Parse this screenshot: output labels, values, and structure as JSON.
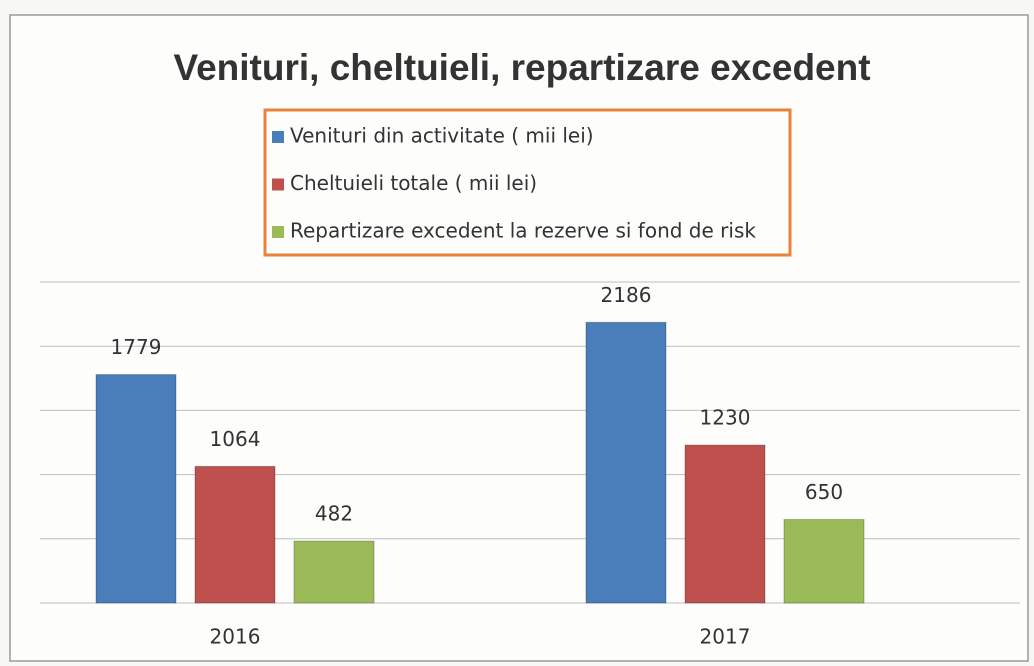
{
  "chart_data": {
    "type": "bar",
    "title": "Venituri, cheltuieli, repartizare excedent",
    "categories": [
      "2016",
      "2017"
    ],
    "series": [
      {
        "name": "Venituri din activitate ( mii lei)",
        "color": "#4a7ebb",
        "values": [
          1779,
          2186
        ]
      },
      {
        "name": "Cheltuieli  totale ( mii lei)",
        "color": "#c0504d",
        "values": [
          1064,
          1230
        ]
      },
      {
        "name": "Repartizare excedent la rezerve si fond de risk",
        "color": "#9bbb59",
        "values": [
          482,
          650
        ]
      }
    ],
    "ylim": [
      0,
      2500
    ],
    "yticks": [
      0,
      500,
      1000,
      1500,
      2000,
      2500
    ],
    "grid": true
  }
}
